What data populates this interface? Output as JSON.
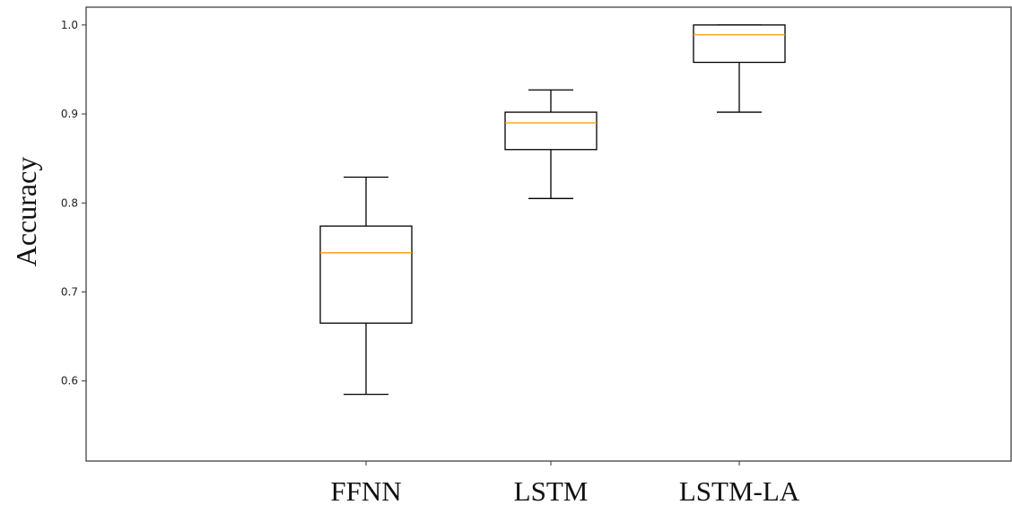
{
  "chart_data": {
    "type": "boxplot",
    "title": "",
    "xlabel": "",
    "ylabel": "Accuracy",
    "ylim": [
      0.51,
      1.02
    ],
    "yticks": [
      0.6,
      0.7,
      0.8,
      0.9,
      1.0
    ],
    "ytick_labels": [
      "0.6",
      "0.7",
      "0.8",
      "0.9",
      "1.0"
    ],
    "categories": [
      "FFNN",
      "LSTM",
      "LSTM-LA"
    ],
    "boxes": [
      {
        "category": "FFNN",
        "whisker_low": 0.585,
        "q1": 0.665,
        "median": 0.744,
        "q3": 0.774,
        "whisker_high": 0.829
      },
      {
        "category": "LSTM",
        "whisker_low": 0.805,
        "q1": 0.86,
        "median": 0.89,
        "q3": 0.902,
        "whisker_high": 0.927
      },
      {
        "category": "LSTM-LA",
        "whisker_low": 0.902,
        "q1": 0.958,
        "median": 0.989,
        "q3": 1.0,
        "whisker_high": 1.0
      }
    ],
    "grid": false,
    "colors": {
      "box": "#000000",
      "median": "#ff9900",
      "axis": "#333333"
    }
  }
}
